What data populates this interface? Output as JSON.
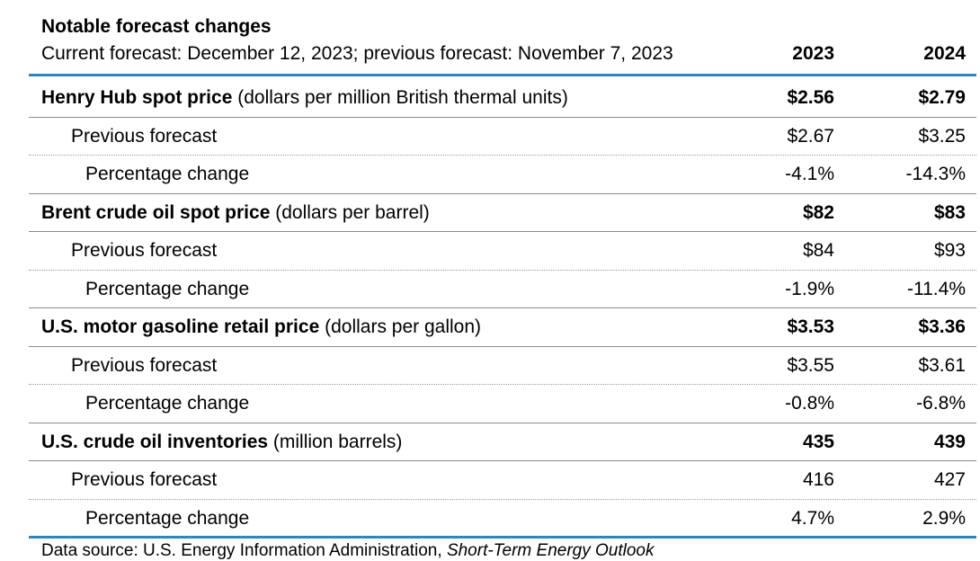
{
  "table": {
    "title": "Notable forecast changes",
    "subtitle": "Current forecast: December 12, 2023; previous forecast: November 7, 2023",
    "columns": [
      "2023",
      "2024"
    ],
    "groups": [
      {
        "name": "Henry Hub spot price",
        "unit": "(dollars per million British thermal units)",
        "values": [
          "$2.56",
          "$2.79"
        ],
        "previous_label": "Previous forecast",
        "previous": [
          "$2.67",
          "$3.25"
        ],
        "change_label": "Percentage change",
        "change": [
          "-4.1%",
          "-14.3%"
        ]
      },
      {
        "name": "Brent crude oil spot price",
        "unit": "(dollars per barrel)",
        "values": [
          "$82",
          "$83"
        ],
        "previous_label": "Previous forecast",
        "previous": [
          "$84",
          "$93"
        ],
        "change_label": "Percentage change",
        "change": [
          "-1.9%",
          "-11.4%"
        ]
      },
      {
        "name": "U.S. motor gasoline retail price",
        "unit": "(dollars per gallon)",
        "values": [
          "$3.53",
          "$3.36"
        ],
        "previous_label": "Previous forecast",
        "previous": [
          "$3.55",
          "$3.61"
        ],
        "change_label": "Percentage change",
        "change": [
          "-0.8%",
          "-6.8%"
        ]
      },
      {
        "name": "U.S. crude oil inventories",
        "unit": "(million barrels)",
        "values": [
          "435",
          "439"
        ],
        "previous_label": "Previous forecast",
        "previous": [
          "416",
          "427"
        ],
        "change_label": "Percentage change",
        "change": [
          "4.7%",
          "2.9%"
        ]
      }
    ],
    "source_prefix": "Data source: U.S. Energy Information Administration,",
    "source_publication": "Short-Term Energy Outlook",
    "accent_color": "#2e86c1"
  }
}
